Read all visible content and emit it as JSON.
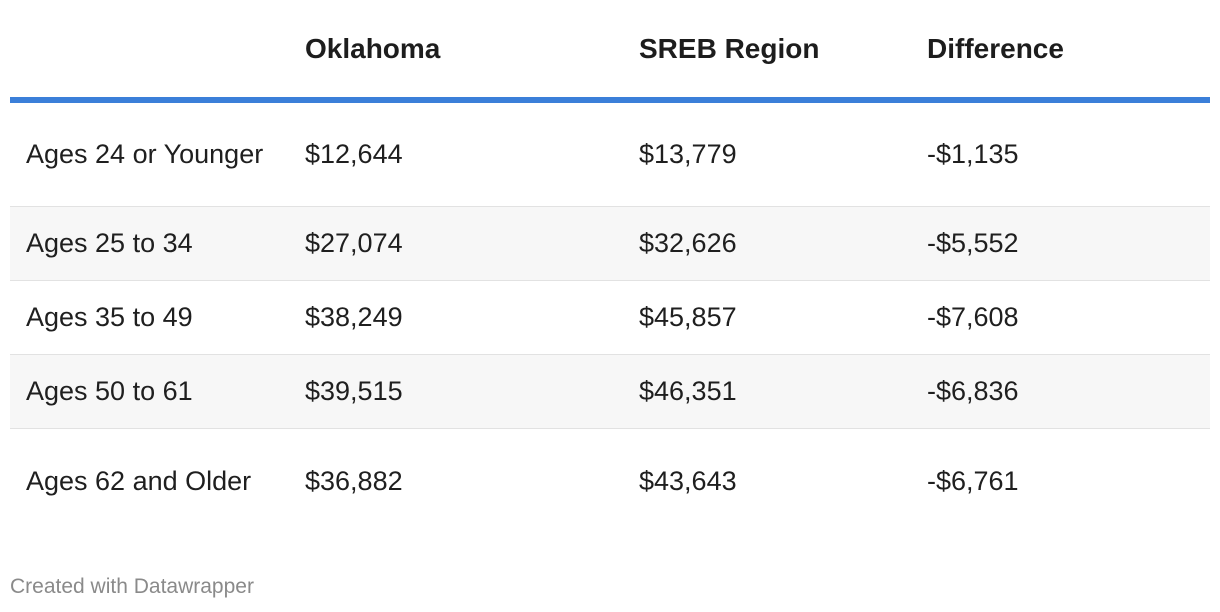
{
  "chart_data": {
    "type": "table",
    "columns": [
      "",
      "Oklahoma",
      "SREB Region",
      "Difference"
    ],
    "rows": [
      {
        "label": "Ages 24 or Younger",
        "oklahoma": "$12,644",
        "sreb": "$13,779",
        "difference": "-$1,135"
      },
      {
        "label": "Ages 25 to 34",
        "oklahoma": "$27,074",
        "sreb": "$32,626",
        "difference": "-$5,552"
      },
      {
        "label": "Ages 35 to 49",
        "oklahoma": "$38,249",
        "sreb": "$45,857",
        "difference": "-$7,608"
      },
      {
        "label": "Ages 50 to 61",
        "oklahoma": "$39,515",
        "sreb": "$46,351",
        "difference": "-$6,836"
      },
      {
        "label": "Ages 62 and Older",
        "oklahoma": "$36,882",
        "sreb": "$43,643",
        "difference": "-$6,761"
      }
    ],
    "values": {
      "oklahoma": [
        12644,
        27074,
        38249,
        39515,
        36882
      ],
      "sreb": [
        13779,
        32626,
        45857,
        46351,
        43643
      ],
      "difference": [
        -1135,
        -5552,
        -7608,
        -6836,
        -6761
      ]
    }
  },
  "footer": {
    "credit": "Created with Datawrapper"
  },
  "colors": {
    "header_rule": "#3b7fd9",
    "stripe": "#f7f7f7",
    "row_divider": "#e2e2e2"
  }
}
